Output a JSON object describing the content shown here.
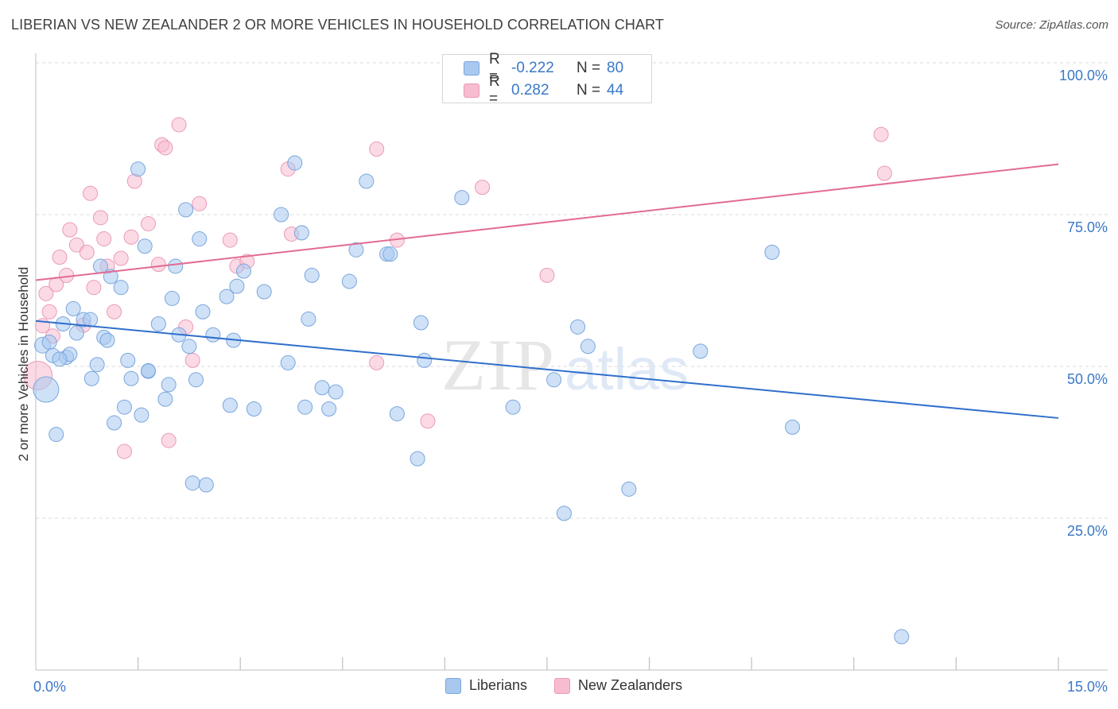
{
  "header": {
    "title": "LIBERIAN VS NEW ZEALANDER 2 OR MORE VEHICLES IN HOUSEHOLD CORRELATION CHART",
    "source": "Source: ZipAtlas.com"
  },
  "watermark": {
    "zip": "ZIP",
    "atlas": "atlas"
  },
  "legend": {
    "rows": [
      {
        "r_label": "R =",
        "r_value": "-0.222",
        "n_label": "N =",
        "n_value": "80"
      },
      {
        "r_label": "R =",
        "r_value": "0.282",
        "n_label": "N =",
        "n_value": "44"
      }
    ]
  },
  "colors": {
    "blue_fill": "#a8c8f0",
    "blue_stroke": "#7aa6dc",
    "blue_line": "#2f6fcc",
    "pink_fill": "#f7bccf",
    "pink_stroke": "#eb9ab6",
    "pink_line": "#e36b94",
    "axis_text": "#3a78c9",
    "grid": "#d9d9d9"
  },
  "chart_data": {
    "type": "scatter",
    "title": "LIBERIAN VS NEW ZEALANDER 2 OR MORE VEHICLES IN HOUSEHOLD CORRELATION CHART",
    "xlabel": "",
    "ylabel": "2 or more Vehicles in Household",
    "xlim": [
      0,
      15
    ],
    "ylim": [
      0,
      100
    ],
    "x_tick_labels": [
      "0.0%",
      "15.0%"
    ],
    "y_ticks": [
      25,
      50,
      75,
      100
    ],
    "y_tick_labels": [
      "25.0%",
      "50.0%",
      "75.0%",
      "100.0%"
    ],
    "grid": true,
    "legend_position": "bottom-center",
    "series": [
      {
        "name": "Liberians",
        "color": "#a8c8f0",
        "trend": {
          "x": [
            0,
            15
          ],
          "y": [
            57.5,
            41.5
          ]
        },
        "points": [
          [
            0.1,
            53.5,
            10
          ],
          [
            0.15,
            46.2,
            16
          ],
          [
            0.2,
            54.0,
            9
          ],
          [
            0.25,
            51.8,
            9
          ],
          [
            0.3,
            38.8,
            9
          ],
          [
            0.4,
            57.0,
            9
          ],
          [
            0.45,
            51.5,
            9
          ],
          [
            0.5,
            52.0,
            9
          ],
          [
            0.55,
            59.5,
            9
          ],
          [
            0.6,
            55.5,
            9
          ],
          [
            0.7,
            57.7,
            9
          ],
          [
            0.8,
            57.7,
            9
          ],
          [
            0.82,
            48.0,
            9
          ],
          [
            0.9,
            50.3,
            9
          ],
          [
            0.95,
            66.5,
            9
          ],
          [
            1.0,
            54.8,
            9
          ],
          [
            1.05,
            54.3,
            9
          ],
          [
            1.1,
            64.8,
            9
          ],
          [
            1.15,
            40.7,
            9
          ],
          [
            1.25,
            63.0,
            9
          ],
          [
            1.3,
            43.3,
            9
          ],
          [
            1.35,
            51.0,
            9
          ],
          [
            1.4,
            48.0,
            9
          ],
          [
            1.5,
            82.5,
            9
          ],
          [
            1.55,
            42.0,
            9
          ],
          [
            1.6,
            69.8,
            9
          ],
          [
            1.65,
            49.2,
            9
          ],
          [
            1.8,
            57.0,
            9
          ],
          [
            1.9,
            44.6,
            9
          ],
          [
            1.95,
            47.0,
            9
          ],
          [
            2.0,
            61.2,
            9
          ],
          [
            2.05,
            66.5,
            9
          ],
          [
            2.1,
            55.2,
            9
          ],
          [
            2.2,
            75.8,
            9
          ],
          [
            2.25,
            53.3,
            9
          ],
          [
            2.3,
            30.8,
            9
          ],
          [
            2.35,
            47.8,
            9
          ],
          [
            2.4,
            71.0,
            9
          ],
          [
            2.45,
            59.0,
            9
          ],
          [
            2.5,
            30.5,
            9
          ],
          [
            2.6,
            55.2,
            9
          ],
          [
            2.8,
            61.5,
            9
          ],
          [
            2.85,
            43.6,
            9
          ],
          [
            2.9,
            54.3,
            9
          ],
          [
            2.95,
            63.2,
            9
          ],
          [
            3.05,
            65.7,
            9
          ],
          [
            3.2,
            43.0,
            9
          ],
          [
            3.35,
            62.3,
            9
          ],
          [
            3.6,
            75.0,
            9
          ],
          [
            3.7,
            50.6,
            9
          ],
          [
            3.8,
            83.5,
            9
          ],
          [
            3.9,
            72.0,
            9
          ],
          [
            3.95,
            43.3,
            9
          ],
          [
            4.0,
            57.8,
            9
          ],
          [
            4.05,
            65.0,
            9
          ],
          [
            4.2,
            46.5,
            9
          ],
          [
            4.3,
            43.0,
            9
          ],
          [
            4.4,
            45.8,
            9
          ],
          [
            4.6,
            64.0,
            9
          ],
          [
            4.7,
            69.2,
            9
          ],
          [
            4.85,
            80.5,
            9
          ],
          [
            5.15,
            68.5,
            9
          ],
          [
            5.2,
            68.5,
            9
          ],
          [
            5.3,
            42.2,
            9
          ],
          [
            5.6,
            34.8,
            9
          ],
          [
            5.65,
            57.2,
            9
          ],
          [
            5.7,
            51.0,
            9
          ],
          [
            6.25,
            77.8,
            9
          ],
          [
            7.0,
            43.3,
            9
          ],
          [
            7.6,
            47.8,
            9
          ],
          [
            7.75,
            25.8,
            9
          ],
          [
            7.95,
            56.5,
            9
          ],
          [
            8.1,
            53.3,
            9
          ],
          [
            8.7,
            29.8,
            9
          ],
          [
            9.75,
            52.5,
            9
          ],
          [
            10.8,
            68.8,
            9
          ],
          [
            11.1,
            40.0,
            9
          ],
          [
            12.7,
            5.5,
            9
          ],
          [
            0.35,
            51.2,
            9
          ],
          [
            1.65,
            49.3,
            9
          ]
        ]
      },
      {
        "name": "New Zealanders",
        "color": "#f7bccf",
        "trend": {
          "x": [
            0,
            15
          ],
          "y": [
            64.2,
            83.3
          ]
        },
        "points": [
          [
            0.03,
            48.5,
            18
          ],
          [
            0.1,
            56.7,
            9
          ],
          [
            0.15,
            62.0,
            9
          ],
          [
            0.2,
            59.0,
            9
          ],
          [
            0.3,
            63.5,
            9
          ],
          [
            0.35,
            68.0,
            9
          ],
          [
            0.45,
            65.0,
            9
          ],
          [
            0.5,
            72.5,
            9
          ],
          [
            0.6,
            70.0,
            9
          ],
          [
            0.7,
            56.8,
            9
          ],
          [
            0.75,
            68.8,
            9
          ],
          [
            0.8,
            78.5,
            9
          ],
          [
            0.85,
            63.0,
            9
          ],
          [
            0.95,
            74.5,
            9
          ],
          [
            1.0,
            71.0,
            9
          ],
          [
            1.05,
            66.5,
            9
          ],
          [
            1.15,
            59.0,
            9
          ],
          [
            1.25,
            67.8,
            9
          ],
          [
            1.3,
            36.0,
            9
          ],
          [
            1.4,
            71.3,
            9
          ],
          [
            1.45,
            80.5,
            9
          ],
          [
            1.65,
            73.5,
            9
          ],
          [
            1.8,
            66.8,
            9
          ],
          [
            1.85,
            86.5,
            9
          ],
          [
            1.9,
            86.0,
            9
          ],
          [
            1.95,
            37.8,
            9
          ],
          [
            2.1,
            89.8,
            9
          ],
          [
            2.2,
            56.5,
            9
          ],
          [
            2.3,
            51.0,
            9
          ],
          [
            2.4,
            76.8,
            9
          ],
          [
            2.85,
            70.8,
            9
          ],
          [
            2.95,
            66.5,
            9
          ],
          [
            3.1,
            67.3,
            9
          ],
          [
            3.7,
            82.5,
            9
          ],
          [
            3.75,
            71.8,
            9
          ],
          [
            5.0,
            50.6,
            9
          ],
          [
            5.0,
            85.8,
            9
          ],
          [
            5.3,
            70.8,
            9
          ],
          [
            5.75,
            41.0,
            9
          ],
          [
            6.55,
            79.5,
            9
          ],
          [
            7.5,
            65.0,
            9
          ],
          [
            12.4,
            88.2,
            9
          ],
          [
            12.45,
            81.8,
            9
          ],
          [
            0.25,
            55.0,
            9
          ]
        ]
      }
    ]
  },
  "bottom_legend": {
    "items": [
      "Liberians",
      "New Zealanders"
    ]
  }
}
